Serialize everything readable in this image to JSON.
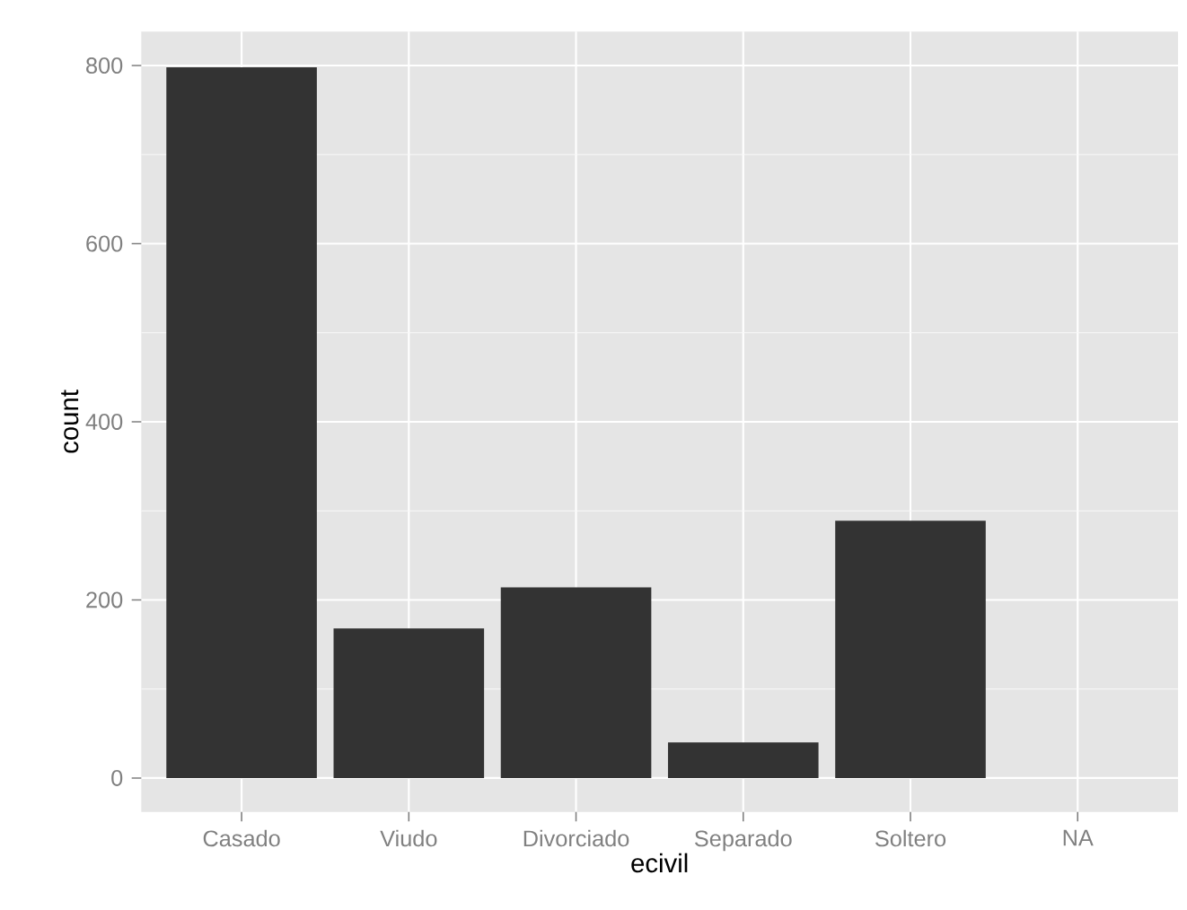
{
  "chart_data": {
    "type": "bar",
    "xlabel": "ecivil",
    "ylabel": "count",
    "categories": [
      "Casado",
      "Viudo",
      "Divorciado",
      "Separado",
      "Soltero",
      "NA"
    ],
    "values": [
      798,
      168,
      214,
      40,
      289,
      0
    ],
    "color": "#333333",
    "ylim": [
      -38,
      838
    ],
    "yticks": [
      0,
      200,
      400,
      600,
      800
    ],
    "grid": true
  }
}
